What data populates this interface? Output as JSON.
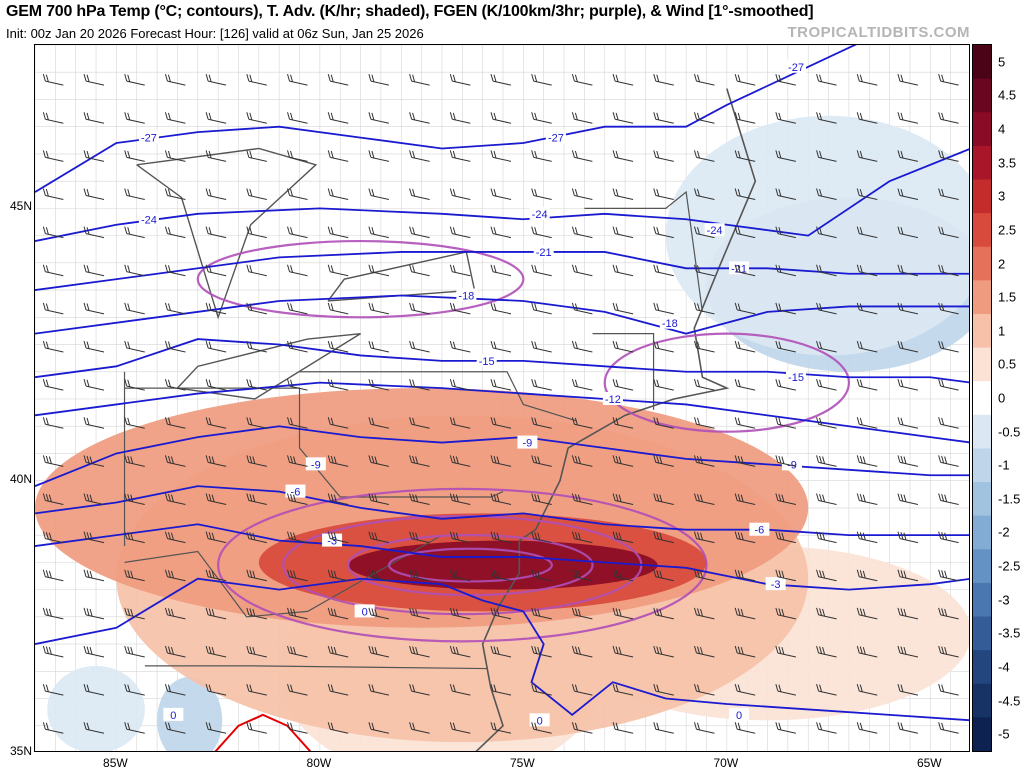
{
  "header": {
    "title": "GEM 700 hPa Temp (°C; contours), T. Adv. (K/hr; shaded), FGEN (K/100km/3hr; purple), & Wind [1°-smoothed]",
    "subtitle": "Init: 00z Jan 20 2026   Forecast Hour: [126]   valid at 06z Sun, Jan 25 2026",
    "brand": "TROPICALTIDBITS.COM"
  },
  "chart_data": {
    "type": "heatmap",
    "title": "GEM 700 hPa Temp (°C; contours), T. Adv. (K/hr; shaded), FGEN (K/100km/3hr; purple), & Wind [1°-smoothed]",
    "lon_ticks": [
      "85W",
      "80W",
      "75W",
      "70W",
      "65W"
    ],
    "lat_ticks": [
      "45N",
      "40N",
      "35N"
    ],
    "lon_range": [
      -87,
      -64
    ],
    "lat_range": [
      35,
      48
    ],
    "colorbar": {
      "ticks": [
        "5",
        "4.5",
        "4",
        "3.5",
        "3",
        "2.5",
        "2",
        "1.5",
        "1",
        "0.5",
        "0",
        "-0.5",
        "-1",
        "-1.5",
        "-2",
        "-2.5",
        "-3",
        "-3.5",
        "-4",
        "-4.5",
        "-5"
      ],
      "range": [
        -5.25,
        5.25
      ],
      "warm_colors": [
        "#ffffff",
        "#fbe2d5",
        "#f6c1a8",
        "#ef9b7f",
        "#e5715a",
        "#d84a3c",
        "#c42b2b",
        "#a9162a",
        "#8a0b25",
        "#6a0620",
        "#4a0317"
      ],
      "cold_colors": [
        "#ffffff",
        "#dbe8f3",
        "#bfd6ea",
        "#a1c3e0",
        "#82acd3",
        "#6492c4",
        "#4a77b0",
        "#345d98",
        "#23467e",
        "#173265",
        "#0d2250"
      ]
    },
    "temp_contours_c": [
      {
        "label": "-27",
        "points": [
          [
            -87,
            45.3
          ],
          [
            -85,
            46.2
          ],
          [
            -83,
            46.4
          ],
          [
            -81,
            46.5
          ],
          [
            -79,
            46.3
          ],
          [
            -77,
            46.1
          ],
          [
            -75,
            46.2
          ],
          [
            -73,
            46.5
          ],
          [
            -71,
            46.5
          ],
          [
            -70,
            46.9
          ],
          [
            -68,
            47.6
          ],
          [
            -66,
            48.3
          ]
        ],
        "labels_at": [
          [
            -84.2,
            46.3
          ],
          [
            -74.2,
            46.3
          ],
          [
            -68.3,
            47.6
          ]
        ]
      },
      {
        "label": "-24",
        "points": [
          [
            -87,
            44.4
          ],
          [
            -85,
            44.7
          ],
          [
            -83,
            44.9
          ],
          [
            -80,
            45.0
          ],
          [
            -77,
            44.9
          ],
          [
            -75,
            44.8
          ],
          [
            -73,
            44.9
          ],
          [
            -71,
            44.8
          ],
          [
            -70,
            44.7
          ],
          [
            -68,
            44.5
          ],
          [
            -66,
            45.5
          ],
          [
            -64,
            46.1
          ]
        ],
        "labels_at": [
          [
            -84.2,
            44.8
          ],
          [
            -74.6,
            44.9
          ],
          [
            -70.3,
            44.6
          ]
        ]
      },
      {
        "label": "-21",
        "points": [
          [
            -87,
            43.5
          ],
          [
            -84,
            43.8
          ],
          [
            -81,
            44.1
          ],
          [
            -78,
            44.2
          ],
          [
            -75,
            44.2
          ],
          [
            -73,
            44.2
          ],
          [
            -71,
            43.9
          ],
          [
            -69,
            43.9
          ],
          [
            -67,
            43.8
          ],
          [
            -64,
            43.8
          ]
        ],
        "labels_at": [
          [
            -74.5,
            44.2
          ],
          [
            -69.7,
            43.9
          ]
        ]
      },
      {
        "label": "-18",
        "points": [
          [
            -87,
            42.7
          ],
          [
            -84,
            43.0
          ],
          [
            -81,
            43.3
          ],
          [
            -78,
            43.4
          ],
          [
            -75,
            43.3
          ],
          [
            -73,
            43.1
          ],
          [
            -71,
            42.7
          ],
          [
            -69,
            43.1
          ],
          [
            -67,
            43.2
          ],
          [
            -64,
            43.2
          ]
        ],
        "labels_at": [
          [
            -76.4,
            43.4
          ],
          [
            -71.4,
            42.9
          ]
        ]
      },
      {
        "label": "-15",
        "points": [
          [
            -87,
            41.9
          ],
          [
            -85,
            42.1
          ],
          [
            -83,
            42.6
          ],
          [
            -81,
            42.5
          ],
          [
            -79,
            42.3
          ],
          [
            -77,
            42.2
          ],
          [
            -75,
            42.2
          ],
          [
            -73,
            42.1
          ],
          [
            -71,
            42.0
          ],
          [
            -69,
            42.0
          ],
          [
            -67,
            41.9
          ],
          [
            -65,
            41.9
          ],
          [
            -64,
            41.8
          ]
        ],
        "labels_at": [
          [
            -75.9,
            42.2
          ],
          [
            -68.3,
            41.9
          ]
        ]
      },
      {
        "label": "-12",
        "points": [
          [
            -87,
            41.2
          ],
          [
            -85,
            41.4
          ],
          [
            -83,
            41.6
          ],
          [
            -80,
            41.8
          ],
          [
            -77,
            41.7
          ],
          [
            -75,
            41.6
          ],
          [
            -73,
            41.5
          ],
          [
            -71,
            41.4
          ],
          [
            -69,
            41.2
          ],
          [
            -67,
            41.0
          ],
          [
            -65,
            40.8
          ],
          [
            -64,
            40.7
          ]
        ],
        "labels_at": [
          [
            -72.8,
            41.5
          ]
        ]
      },
      {
        "label": "-9",
        "points": [
          [
            -87,
            39.9
          ],
          [
            -85,
            40.5
          ],
          [
            -83,
            40.8
          ],
          [
            -81,
            41.0
          ],
          [
            -79,
            40.8
          ],
          [
            -77,
            40.7
          ],
          [
            -75,
            40.8
          ],
          [
            -73,
            40.6
          ],
          [
            -71,
            40.4
          ],
          [
            -69,
            40.3
          ],
          [
            -67,
            40.2
          ],
          [
            -65,
            40.1
          ],
          [
            -64,
            40.1
          ]
        ],
        "labels_at": [
          [
            -80.1,
            40.3
          ],
          [
            -74.9,
            40.7
          ],
          [
            -68.4,
            40.3
          ]
        ]
      },
      {
        "label": "-6",
        "points": [
          [
            -87,
            39.4
          ],
          [
            -85,
            39.6
          ],
          [
            -83,
            39.9
          ],
          [
            -81,
            39.8
          ],
          [
            -79,
            39.5
          ],
          [
            -77,
            39.3
          ],
          [
            -75,
            39.4
          ],
          [
            -73,
            39.2
          ],
          [
            -71,
            39.1
          ],
          [
            -69,
            39.1
          ],
          [
            -67,
            39.0
          ],
          [
            -65,
            39.0
          ],
          [
            -64,
            39.0
          ]
        ],
        "labels_at": [
          [
            -80.6,
            39.8
          ],
          [
            -69.2,
            39.1
          ]
        ]
      },
      {
        "label": "-3",
        "points": [
          [
            -87,
            38.8
          ],
          [
            -85,
            39.0
          ],
          [
            -83,
            39.2
          ],
          [
            -81,
            38.9
          ],
          [
            -79,
            38.8
          ],
          [
            -77,
            38.6
          ],
          [
            -75,
            38.6
          ],
          [
            -73,
            38.5
          ],
          [
            -71,
            38.4
          ],
          [
            -69,
            38.1
          ],
          [
            -67,
            38.0
          ],
          [
            -65,
            38.1
          ],
          [
            -64,
            38.2
          ]
        ],
        "labels_at": [
          [
            -79.7,
            38.9
          ],
          [
            -68.8,
            38.1
          ]
        ]
      },
      {
        "label": "0",
        "points": [
          [
            -87,
            37.0
          ],
          [
            -85,
            37.3
          ],
          [
            -83,
            38.2
          ],
          [
            -81,
            38.0
          ],
          [
            -79,
            38.2
          ],
          [
            -77,
            38.1
          ],
          [
            -76,
            37.8
          ],
          [
            -75,
            37.6
          ],
          [
            -74.5,
            37.0
          ],
          [
            -74.8,
            36.3
          ],
          [
            -73.8,
            35.7
          ],
          [
            -72.8,
            36.3
          ],
          [
            -71.5,
            36.0
          ],
          [
            -70,
            35.9
          ],
          [
            -68,
            35.8
          ],
          [
            -66,
            35.7
          ],
          [
            -64,
            35.6
          ]
        ],
        "labels_at": [
          [
            -83.6,
            35.7
          ],
          [
            -78.9,
            37.6
          ],
          [
            -74.6,
            35.6
          ],
          [
            -69.7,
            35.7
          ]
        ]
      }
    ],
    "freezing_line_red": [
      [
        -82.6,
        35
      ],
      [
        -82,
        35.5
      ],
      [
        -81.4,
        35.7
      ],
      [
        -80.8,
        35.5
      ],
      [
        -80.2,
        35
      ]
    ],
    "warm_advection_regions": [
      {
        "level": 1.5,
        "center": [
          -77.5,
          39.5
        ],
        "radius_deg": [
          9.5,
          2.2
        ]
      },
      {
        "level": 1.0,
        "center": [
          -76.5,
          38.2
        ],
        "radius_deg": [
          8.5,
          3.0
        ]
      },
      {
        "level": 2.5,
        "center": [
          -76.0,
          38.5
        ],
        "radius_deg": [
          5.5,
          0.9
        ]
      },
      {
        "level": 4.0,
        "center": [
          -75.5,
          38.45
        ],
        "radius_deg": [
          3.8,
          0.45
        ]
      },
      {
        "level": 0.5,
        "center": [
          -77.0,
          36.5
        ],
        "radius_deg": [
          4.0,
          2.0
        ]
      },
      {
        "level": 0.5,
        "center": [
          -69.0,
          37.2
        ],
        "radius_deg": [
          5.0,
          1.6
        ]
      }
    ],
    "cold_advection_regions": [
      {
        "level": -1.0,
        "center": [
          -67.0,
          43.6
        ],
        "radius_deg": [
          3.5,
          1.6
        ]
      },
      {
        "level": -0.5,
        "center": [
          -67.5,
          44.5
        ],
        "radius_deg": [
          4.0,
          2.2
        ]
      },
      {
        "level": -1.0,
        "center": [
          -83.2,
          35.6
        ],
        "radius_deg": [
          0.8,
          0.8
        ]
      },
      {
        "level": -0.5,
        "center": [
          -85.5,
          35.8
        ],
        "radius_deg": [
          1.2,
          0.8
        ]
      }
    ],
    "fgen_contours": [
      {
        "center": [
          -76.5,
          38.45
        ],
        "radius_deg": [
          6.0,
          1.4
        ]
      },
      {
        "center": [
          -76.5,
          38.45
        ],
        "radius_deg": [
          4.4,
          0.9
        ]
      },
      {
        "center": [
          -76.3,
          38.45
        ],
        "radius_deg": [
          3.0,
          0.55
        ]
      },
      {
        "center": [
          -76.3,
          38.45
        ],
        "radius_deg": [
          2.0,
          0.3
        ]
      },
      {
        "center": [
          -70.0,
          41.8
        ],
        "radius_deg": [
          3.0,
          0.9
        ]
      },
      {
        "center": [
          -79.0,
          43.7
        ],
        "radius_deg": [
          4.0,
          0.7
        ]
      }
    ],
    "wind_barbs": {
      "grid_spacing_deg": 1.0,
      "flow": "westerly to southwesterly"
    }
  }
}
